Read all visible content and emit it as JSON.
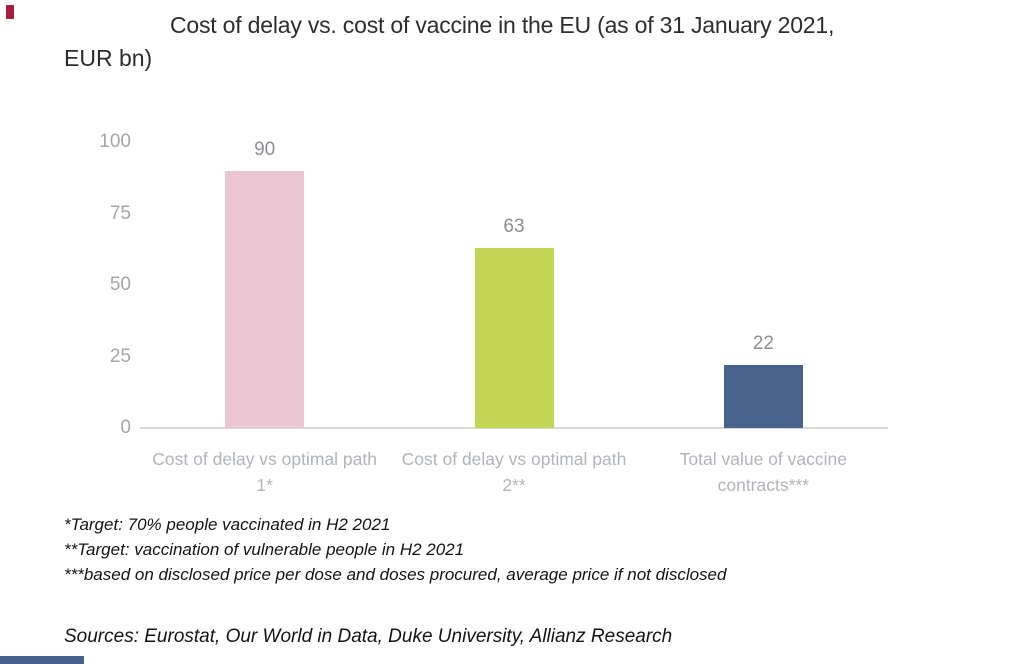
{
  "chart_data": {
    "type": "bar",
    "title": "Cost of delay vs. cost of vaccine in the EU (as of 31 January 2021, EUR bn)",
    "title_line1": "Cost of delay vs. cost of vaccine in the EU (as of 31 January 2021,",
    "title_line2": "EUR bn)",
    "categories": [
      "Cost of delay vs optimal path 1*",
      "Cost of delay vs optimal path 2**",
      "Total value of vaccine contracts***"
    ],
    "values": [
      90,
      63,
      22
    ],
    "value_labels": [
      "90",
      "63",
      "22"
    ],
    "bar_colors": [
      "#eac7d3",
      "#c3d653",
      "#47638b"
    ],
    "y_ticks": [
      "0",
      "25",
      "50",
      "75",
      "100"
    ],
    "ylim": [
      0,
      100
    ],
    "xlabel": "",
    "ylabel": "",
    "grid": false,
    "legend": "none"
  },
  "footnotes": [
    "*Target: 70% people vaccinated in H2 2021",
    "**Target: vaccination of vulnerable people in H2 2021",
    "***based on disclosed price per dose and doses procured, average price if not disclosed"
  ],
  "sources_line": "Sources: Eurostat,  Our World in Data,  Duke University,  Allianz Research",
  "decorations": {
    "top_left_mark_color": "#a81e3c",
    "bottom_left_bar_color": "#45618c",
    "axis_line_color": "#d9d9d9"
  }
}
